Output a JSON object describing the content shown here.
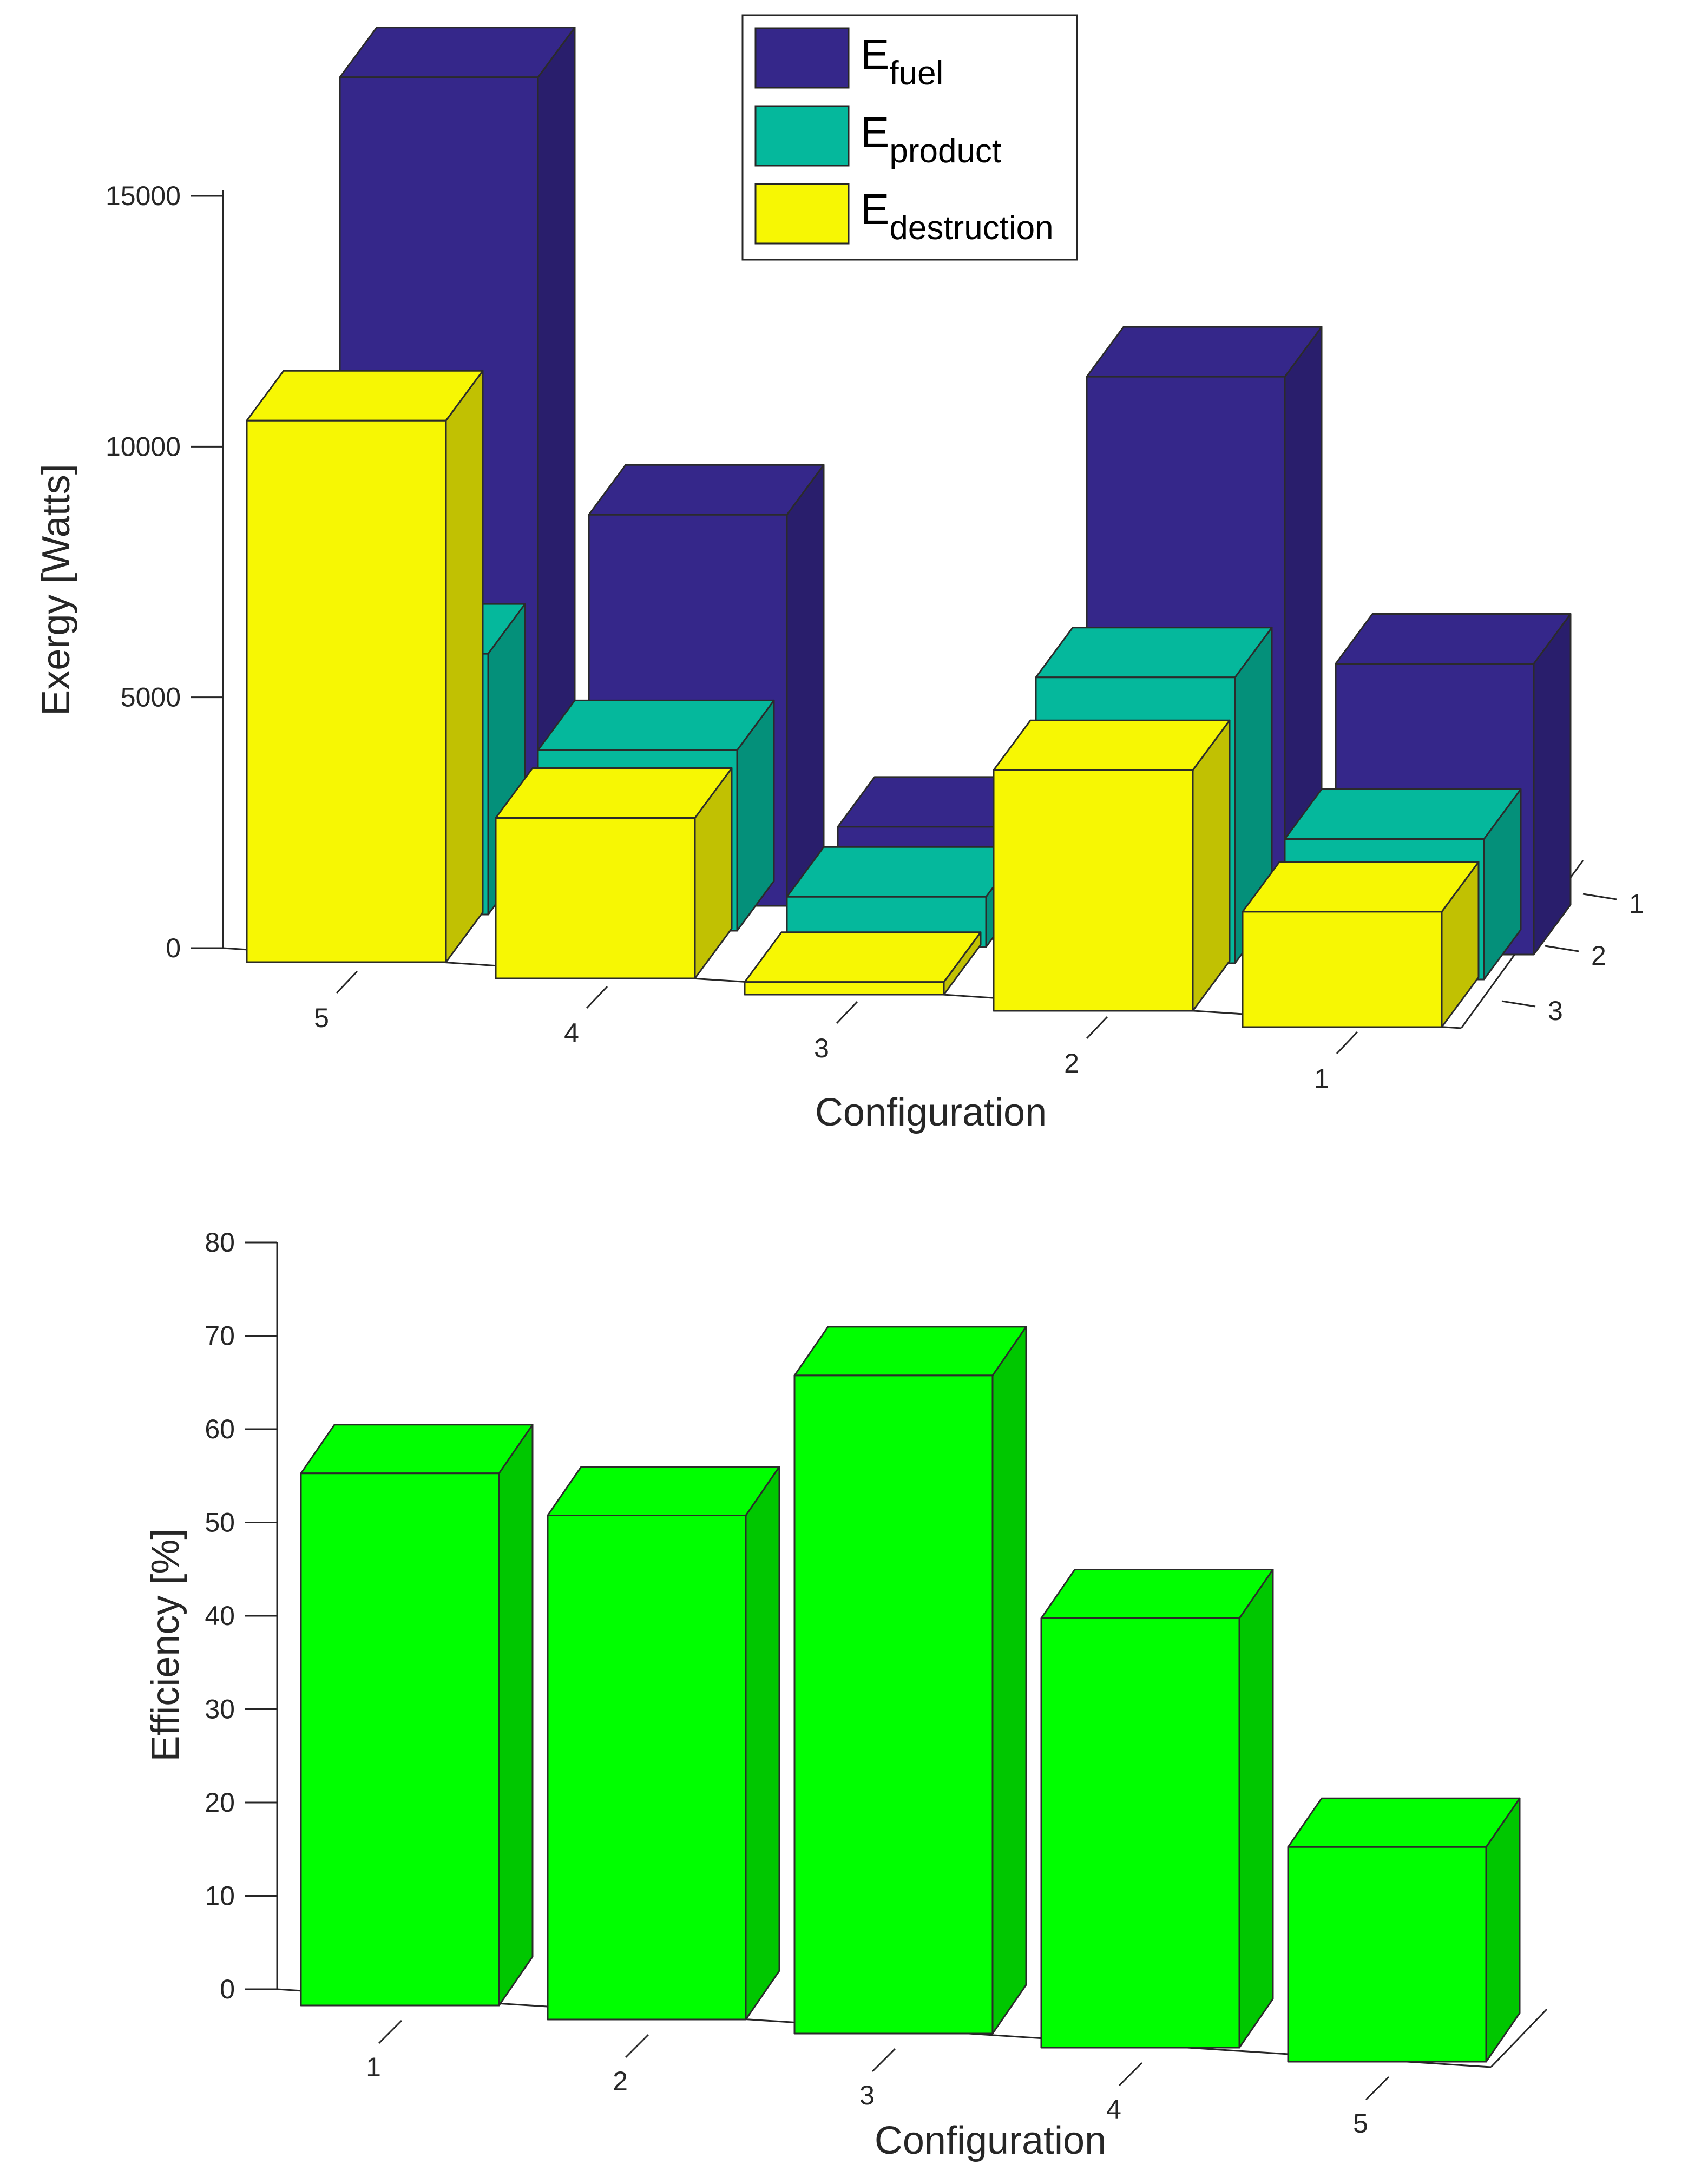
{
  "colors": {
    "fuel": "#35278a",
    "product": "#05b89c",
    "destruction": "#f7f703",
    "efficiency": "#00ff00",
    "axis": "#262626",
    "bar_edge": "#2b2b2b"
  },
  "chart_data": [
    {
      "type": "bar3d",
      "title": "",
      "xlabel": "Configuration",
      "ylabel": "Exergy [Watts]",
      "ylim": [
        0,
        15000
      ],
      "yticks": [
        0,
        5000,
        10000,
        15000
      ],
      "ytick_labels": [
        "0",
        "5000",
        "10000",
        "15000"
      ],
      "categories": [
        "5",
        "4",
        "3",
        "2",
        "1"
      ],
      "depth_tick_labels": [
        "1",
        "2",
        "3"
      ],
      "series": [
        {
          "name": "E_fuel",
          "label_main": "E",
          "label_sub": "fuel",
          "depth_row": 1,
          "values": [
            16200,
            7800,
            1900,
            11200,
            5800
          ]
        },
        {
          "name": "E_product",
          "label_main": "E",
          "label_sub": "product",
          "depth_row": 2,
          "values": [
            5200,
            3600,
            1000,
            5700,
            2800
          ]
        },
        {
          "name": "E_destruction",
          "label_main": "E",
          "label_sub": "destruction",
          "depth_row": 3,
          "values": [
            10800,
            3200,
            250,
            4800,
            2300
          ]
        }
      ],
      "legend": "top-center"
    },
    {
      "type": "bar3d",
      "title": "",
      "xlabel": "Configuration",
      "ylabel": "Efficiency [%]",
      "ylim": [
        0,
        80
      ],
      "yticks": [
        0,
        10,
        20,
        30,
        40,
        50,
        60,
        70,
        80
      ],
      "ytick_labels": [
        "0",
        "10",
        "20",
        "30",
        "40",
        "50",
        "60",
        "70",
        "80"
      ],
      "categories": [
        "1",
        "2",
        "3",
        "4",
        "5"
      ],
      "series": [
        {
          "name": "Efficiency",
          "values": [
            57,
            54,
            70.5,
            46,
            23
          ]
        }
      ]
    }
  ]
}
